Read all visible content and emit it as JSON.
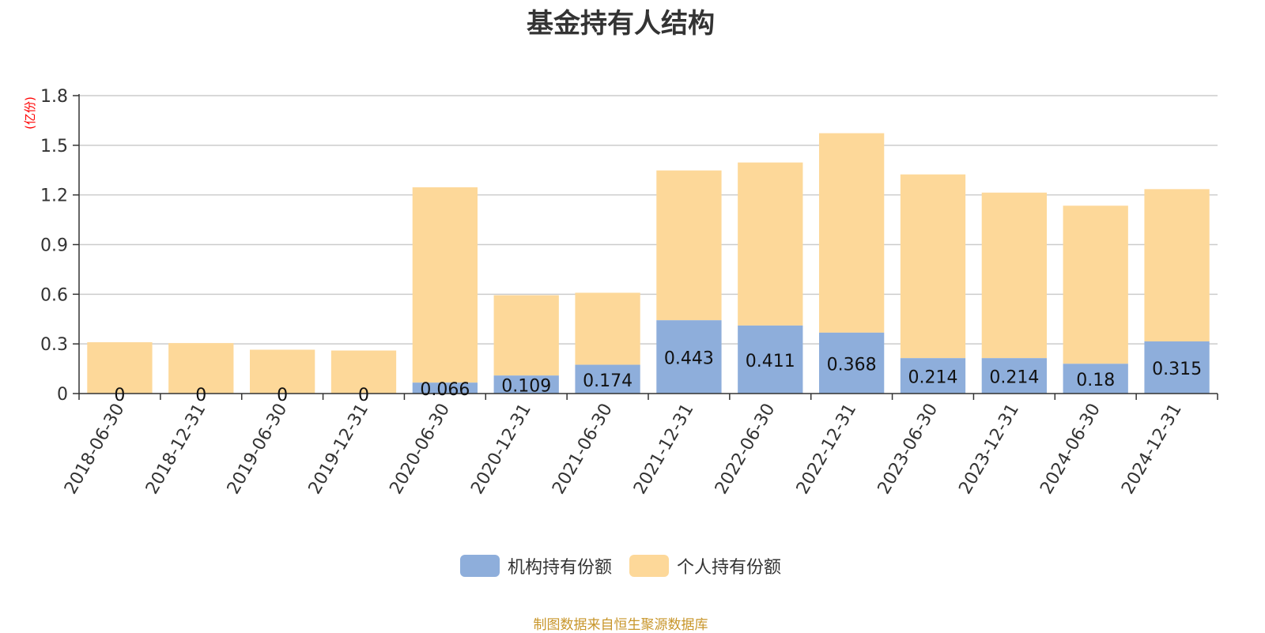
{
  "title": "基金持有人结构",
  "source": "制图数据来自恒生聚源数据库",
  "colors": {
    "institutional": "#8eaedb",
    "individual": "#fdd899",
    "grid": "#cccccc",
    "axis": "#333333",
    "unit": "#ff0000"
  },
  "chart_data": {
    "type": "bar",
    "stacked": true,
    "title": "基金持有人结构",
    "ylabel": "(亿份)",
    "ylim": [
      0,
      1.8
    ],
    "yticks": [
      "0",
      "0.3",
      "0.6",
      "0.9",
      "1.2",
      "1.5",
      "1.8"
    ],
    "grid": true,
    "legend_position": "bottom",
    "categories": [
      "2018-06-30",
      "2018-12-31",
      "2019-06-30",
      "2019-12-31",
      "2020-06-30",
      "2020-12-31",
      "2021-06-30",
      "2021-12-31",
      "2022-06-30",
      "2022-12-31",
      "2023-06-30",
      "2023-12-31",
      "2024-06-30",
      "2024-12-31"
    ],
    "series": [
      {
        "name": "机构持有份额",
        "values": [
          0,
          0,
          0,
          0,
          0.066,
          0.109,
          0.174,
          0.443,
          0.411,
          0.368,
          0.214,
          0.214,
          0.18,
          0.315
        ],
        "labels": [
          "0",
          "0",
          "0",
          "0",
          "0.066",
          "0.109",
          "0.174",
          "0.443",
          "0.411",
          "0.368",
          "0.214",
          "0.214",
          "0.18",
          "0.315"
        ]
      },
      {
        "name": "个人持有份额",
        "values": [
          0.31,
          0.305,
          0.265,
          0.26,
          1.18,
          0.485,
          0.435,
          0.905,
          0.985,
          1.205,
          1.11,
          1.0,
          0.955,
          0.92
        ]
      }
    ]
  }
}
